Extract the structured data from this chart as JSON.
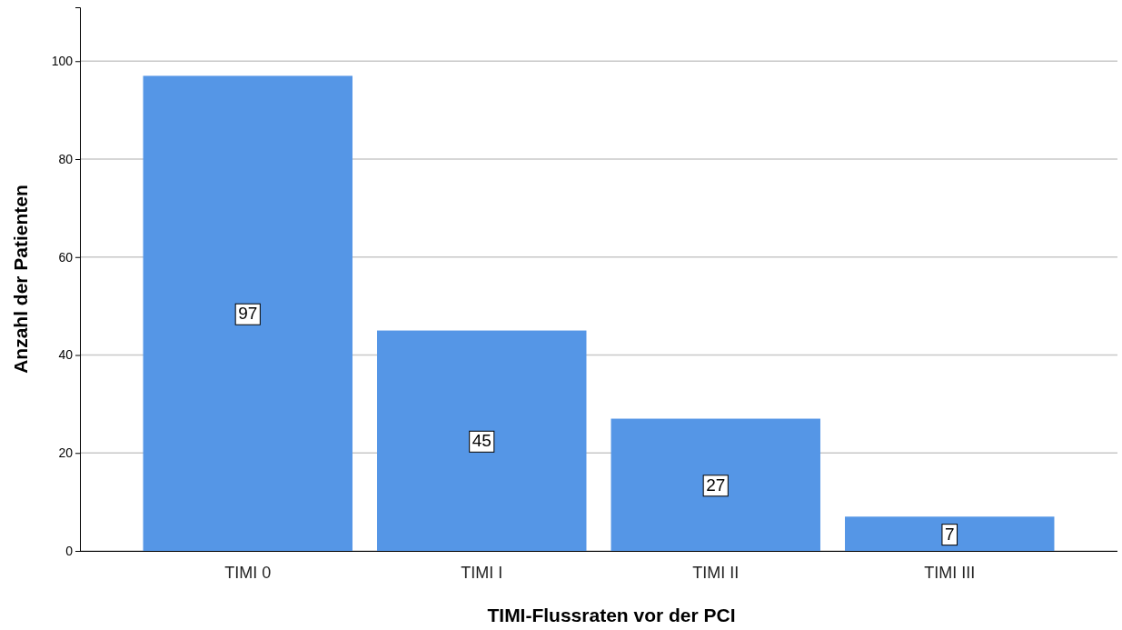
{
  "chart_data": {
    "type": "bar",
    "xlabel": "TIMI-Flussraten vor der PCI",
    "ylabel": "Anzahl der Patienten",
    "categories": [
      "TIMI 0",
      "TIMI I",
      "TIMI II",
      "TIMI III"
    ],
    "values": [
      97,
      45,
      27,
      7
    ],
    "color": "#5596e6",
    "ylim": [
      0,
      111
    ],
    "yticks": [
      0,
      20,
      40,
      60,
      80,
      100
    ],
    "grid": "y",
    "data_labels": true
  }
}
